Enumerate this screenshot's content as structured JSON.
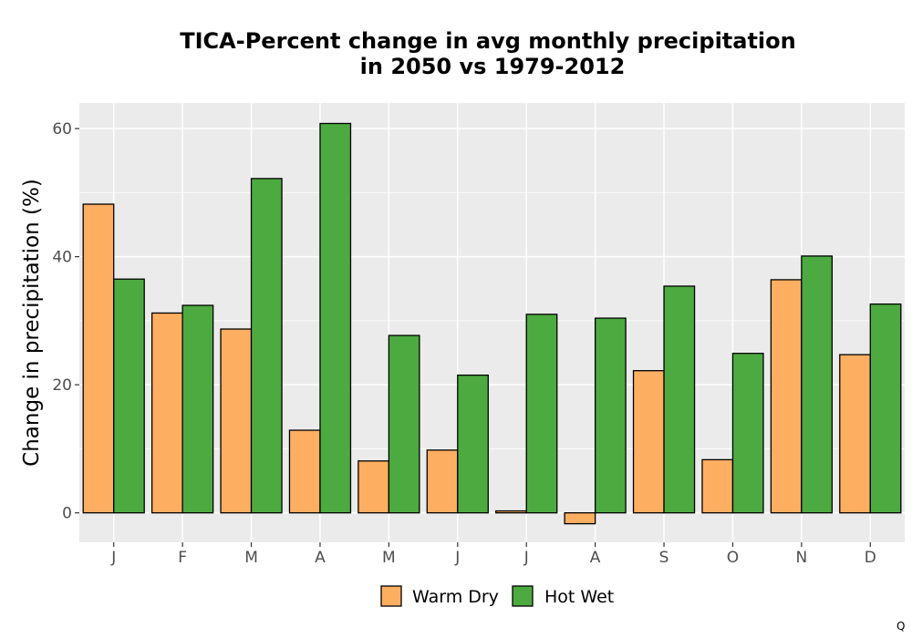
{
  "chart_data": {
    "type": "bar",
    "title": "TICA-Percent change in avg monthly precipitation in 2050 vs 1979-2012",
    "title_lines": [
      "TICA-Percent change in avg monthly precipitation",
      "in 2050 vs 1979-2012"
    ],
    "xlabel": "",
    "ylabel": "Change in precipitation (%)",
    "categories": [
      "J",
      "F",
      "M",
      "A",
      "M",
      "J",
      "J",
      "A",
      "S",
      "O",
      "N",
      "D"
    ],
    "series": [
      {
        "name": "Warm Dry",
        "color": "#FDAE61",
        "values": [
          48.2,
          31.2,
          28.7,
          12.9,
          8.1,
          9.8,
          0.3,
          -1.7,
          22.2,
          8.3,
          36.4,
          24.7
        ]
      },
      {
        "name": "Hot Wet",
        "color": "#4DAA40",
        "values": [
          36.5,
          32.4,
          52.2,
          60.8,
          27.7,
          21.5,
          31.0,
          30.4,
          35.4,
          24.9,
          40.1,
          32.6
        ]
      }
    ],
    "ylim": [
      -4.6,
      64
    ],
    "yticks": [
      0,
      20,
      40,
      60
    ],
    "grid": true,
    "legend_position": "bottom",
    "panel_background": "#EBEBEB",
    "corner_mark": "Q"
  }
}
